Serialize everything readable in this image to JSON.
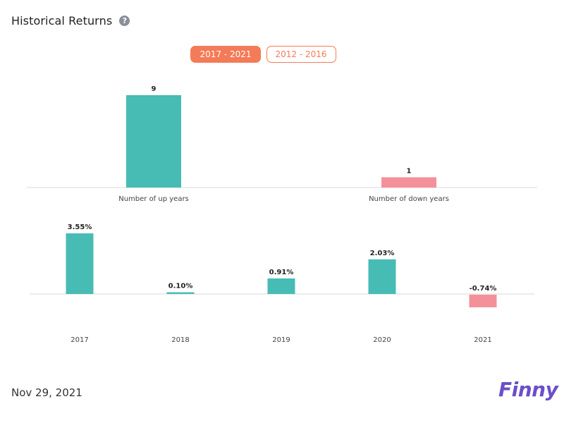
{
  "header": {
    "title": "Historical Returns",
    "help_icon": "question-circle-icon"
  },
  "tabs": [
    {
      "label": "2017 - 2021",
      "active": true
    },
    {
      "label": "2012 - 2016",
      "active": false
    }
  ],
  "colors": {
    "positive": "#47bcb4",
    "negative": "#f4909a",
    "accent": "#f47b57",
    "axis": "#d9d9d9",
    "logo": "#6a4fc9"
  },
  "chart_data": [
    {
      "type": "bar",
      "categories": [
        "Number of up years",
        "Number of down years"
      ],
      "values": [
        9,
        1
      ],
      "value_labels": [
        "9",
        "1"
      ],
      "ylim": [
        0,
        9
      ]
    },
    {
      "type": "bar",
      "categories": [
        "2017",
        "2018",
        "2019",
        "2020",
        "2021"
      ],
      "values": [
        3.55,
        0.1,
        0.91,
        2.03,
        -0.74
      ],
      "value_labels": [
        "3.55%",
        "0.10%",
        "0.91%",
        "2.03%",
        "-0.74%"
      ],
      "ylim": [
        -0.74,
        3.55
      ]
    }
  ],
  "footer": {
    "date": "Nov 29, 2021",
    "logo": "Finny"
  }
}
